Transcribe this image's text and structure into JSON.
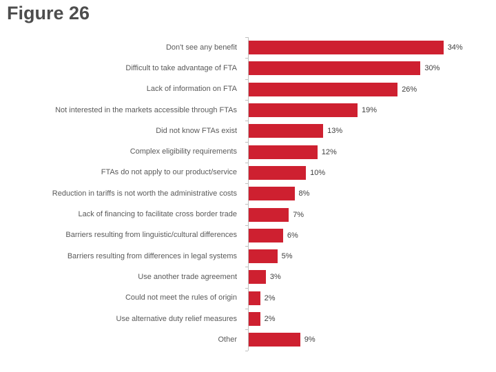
{
  "title": "Figure 26",
  "colors": {
    "bar": "#CE2030",
    "axis": "#BFBFBF",
    "category_label": "#595959",
    "value_label": "#404040",
    "title": "#4D4D4D"
  },
  "chart_data": {
    "type": "bar",
    "orientation": "horizontal",
    "title": "Figure 26",
    "categories": [
      "Don't see any benefit",
      "Difficult to take advantage of FTA",
      "Lack of information on FTA",
      "Not interested in the markets accessible through FTAs",
      "Did not know FTAs exist",
      "Complex eligibility requirements",
      "FTAs do not apply to our product/service",
      "Reduction in tariffs is not worth the administrative costs",
      "Lack of financing to facilitate cross border trade",
      "Barriers resulting from linguistic/cultural differences",
      "Barriers resulting from differences in legal systems",
      "Use another trade agreement",
      "Could not meet the rules of origin",
      "Use alternative duty relief measures",
      "Other"
    ],
    "values": [
      34,
      30,
      26,
      19,
      13,
      12,
      10,
      8,
      7,
      6,
      5,
      3,
      2,
      2,
      9
    ],
    "value_labels": [
      "34%",
      "30%",
      "26%",
      "19%",
      "13%",
      "12%",
      "10%",
      "8%",
      "7%",
      "6%",
      "5%",
      "3%",
      "2%",
      "2%",
      "9%"
    ],
    "xlabel": "",
    "ylabel": "",
    "xlim": [
      0,
      35
    ],
    "grid": false,
    "legend": false
  }
}
